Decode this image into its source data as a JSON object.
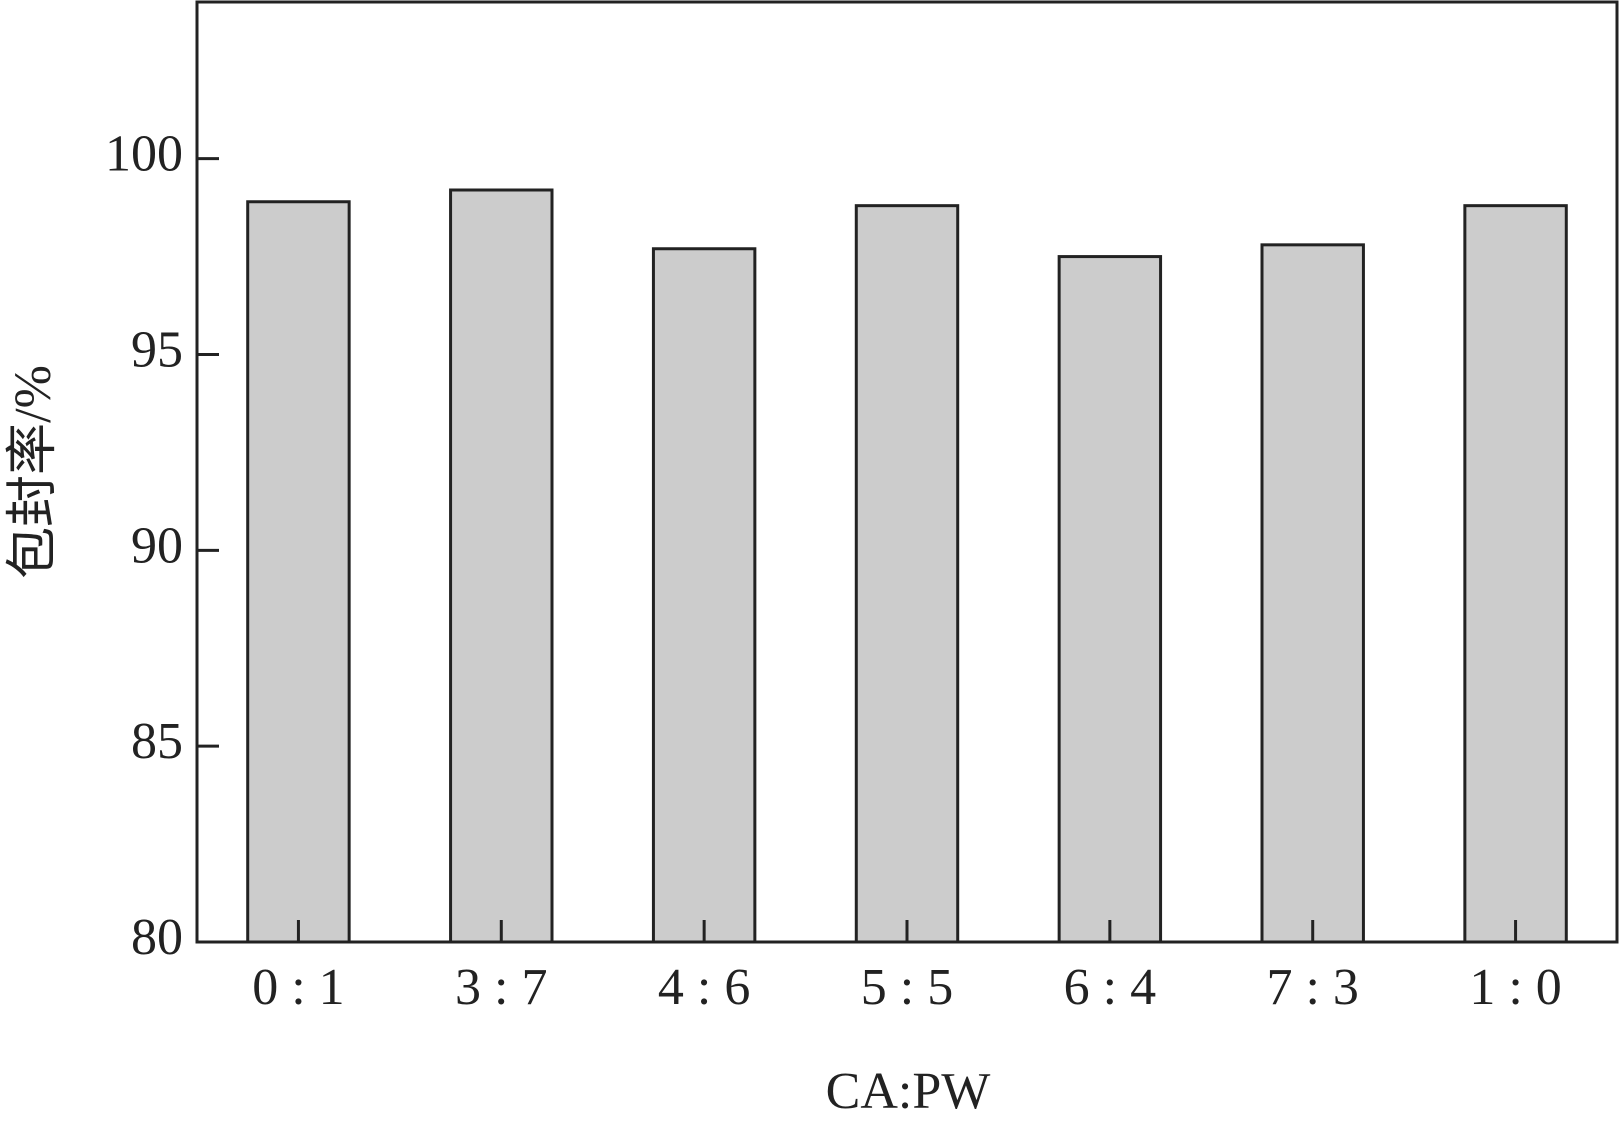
{
  "chart_data": {
    "type": "bar",
    "x_label": "CA:PW",
    "y_label": "包封率/%",
    "categories": [
      "0 : 1",
      "3 : 7",
      "4 : 6",
      "5 : 5",
      "6 : 4",
      "7 : 3",
      "1 : 0"
    ],
    "values": [
      98.9,
      99.2,
      97.7,
      98.8,
      97.5,
      97.8,
      98.8
    ],
    "color": "#cccccc",
    "ylim": [
      80,
      104
    ],
    "yticks": [
      80,
      85,
      90,
      95,
      100
    ],
    "grid": false
  }
}
